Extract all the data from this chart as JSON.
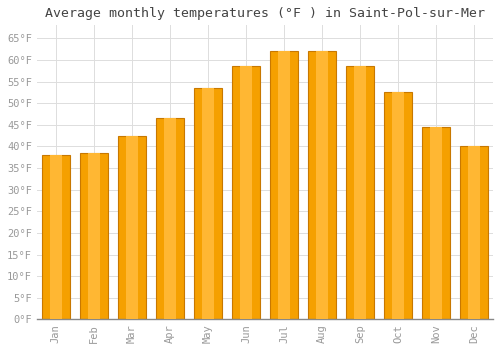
{
  "title": "Average monthly temperatures (°F ) in Saint-Pol-sur-Mer",
  "months": [
    "Jan",
    "Feb",
    "Mar",
    "Apr",
    "May",
    "Jun",
    "Jul",
    "Aug",
    "Sep",
    "Oct",
    "Nov",
    "Dec"
  ],
  "values": [
    38,
    38.5,
    42.5,
    46.5,
    53.5,
    58.5,
    62,
    62,
    58.5,
    52.5,
    44.5,
    40
  ],
  "bar_color_center": "#FFB733",
  "bar_color_edge": "#F5A000",
  "bar_edge_color": "#C87800",
  "ylim": [
    0,
    68
  ],
  "yticks": [
    0,
    5,
    10,
    15,
    20,
    25,
    30,
    35,
    40,
    45,
    50,
    55,
    60,
    65
  ],
  "background_color": "#FFFFFF",
  "grid_color": "#DDDDDD",
  "title_fontsize": 9.5,
  "tick_fontsize": 7.5,
  "title_font": "monospace",
  "tick_font": "monospace",
  "tick_color": "#999999",
  "title_color": "#444444"
}
